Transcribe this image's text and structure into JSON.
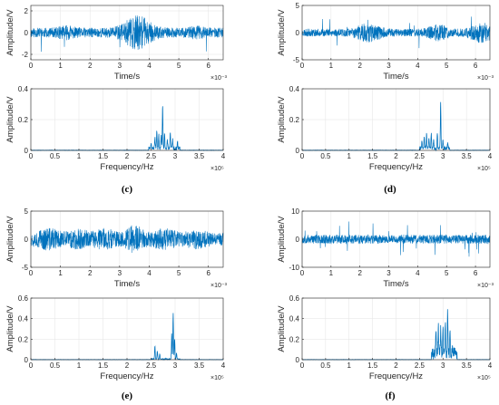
{
  "panel_labels": [
    "(c)",
    "(d)",
    "(e)",
    "(f)"
  ],
  "chart_data": [
    {
      "id": "c-time",
      "type": "line",
      "xlabel": "Time/s",
      "ylabel": "Amplitude/V",
      "x_multiplier": "×10⁻³",
      "xlim": [
        0,
        6.5
      ],
      "ylim": [
        -2.5,
        2.5
      ],
      "xticks": [
        0,
        1,
        2,
        3,
        4,
        5,
        6
      ],
      "yticks": [
        -2,
        0,
        2
      ],
      "signal": {
        "seed": 11,
        "base": 0.45,
        "bursts": [
          [
            3.6,
            1.15,
            0.5
          ],
          [
            1.2,
            0.25,
            0.3
          ],
          [
            5.6,
            0.2,
            0.3
          ]
        ],
        "spike_prob": 0.01,
        "spike_amp": 1.0
      }
    },
    {
      "id": "c-freq",
      "type": "line",
      "xlabel": "Frequency/Hz",
      "ylabel": "Amplitude/V",
      "x_multiplier": "×10⁵",
      "xlim": [
        0,
        4
      ],
      "ylim": [
        0,
        0.4
      ],
      "xticks": [
        0,
        0.5,
        1,
        1.5,
        2,
        2.5,
        3,
        3.5,
        4
      ],
      "yticks": [
        0,
        0.2,
        0.4
      ],
      "peaks": [
        [
          2.5,
          0.03
        ],
        [
          2.58,
          0.07
        ],
        [
          2.62,
          0.11
        ],
        [
          2.66,
          0.09
        ],
        [
          2.71,
          0.08
        ],
        [
          2.74,
          0.28
        ],
        [
          2.78,
          0.1
        ],
        [
          2.84,
          0.05
        ],
        [
          2.9,
          0.11
        ],
        [
          2.95,
          0.06
        ],
        [
          3.05,
          0.04
        ]
      ],
      "band": [
        2.45,
        3.1,
        0.025
      ]
    },
    {
      "id": "d-time",
      "type": "line",
      "xlabel": "Time/s",
      "ylabel": "Amplitude/V",
      "x_multiplier": "×10⁻³",
      "xlim": [
        0,
        6.5
      ],
      "ylim": [
        -5,
        5
      ],
      "xticks": [
        0,
        1,
        2,
        3,
        4,
        5,
        6
      ],
      "yticks": [
        -5,
        0,
        5
      ],
      "signal": {
        "seed": 23,
        "base": 0.7,
        "bursts": [
          [
            2.3,
            1.1,
            0.45
          ],
          [
            4.7,
            0.9,
            0.35
          ],
          [
            6.2,
            1.3,
            0.4
          ]
        ],
        "spike_prob": 0.01,
        "spike_amp": 1.5
      }
    },
    {
      "id": "d-freq",
      "type": "line",
      "xlabel": "Frequency/Hz",
      "ylabel": "Amplitude/V",
      "x_multiplier": "×10⁵",
      "xlim": [
        0,
        4
      ],
      "ylim": [
        0,
        0.4
      ],
      "xticks": [
        0,
        0.5,
        1,
        1.5,
        2,
        2.5,
        3,
        3.5,
        4
      ],
      "yticks": [
        0,
        0.2,
        0.4
      ],
      "peaks": [
        [
          2.55,
          0.05
        ],
        [
          2.6,
          0.08
        ],
        [
          2.65,
          0.1
        ],
        [
          2.7,
          0.07
        ],
        [
          2.75,
          0.1
        ],
        [
          2.8,
          0.06
        ],
        [
          2.88,
          0.09
        ],
        [
          2.95,
          0.31
        ],
        [
          3.0,
          0.05
        ],
        [
          3.1,
          0.03
        ]
      ],
      "band": [
        2.5,
        3.15,
        0.025
      ]
    },
    {
      "id": "e-time",
      "type": "line",
      "xlabel": "Time/s",
      "ylabel": "Amplitude/V",
      "x_multiplier": "×10⁻³",
      "xlim": [
        0,
        6.5
      ],
      "ylim": [
        -5,
        5
      ],
      "xticks": [
        0,
        1,
        2,
        3,
        4,
        5,
        6
      ],
      "yticks": [
        -5,
        0,
        5
      ],
      "signal": {
        "seed": 37,
        "base": 1.2,
        "bursts": [
          [
            0.6,
            0.9,
            0.4
          ],
          [
            1.6,
            0.7,
            0.35
          ],
          [
            2.5,
            0.8,
            0.35
          ],
          [
            3.5,
            1.4,
            0.3
          ],
          [
            4.5,
            0.9,
            0.35
          ],
          [
            5.6,
            0.6,
            0.4
          ]
        ],
        "spike_prob": 0.0,
        "spike_amp": 0
      }
    },
    {
      "id": "e-freq",
      "type": "line",
      "xlabel": "Frequency/Hz",
      "ylabel": "Amplitude/V",
      "x_multiplier": "×10⁵",
      "xlim": [
        0,
        4
      ],
      "ylim": [
        0,
        0.6
      ],
      "xticks": [
        0,
        0.5,
        1,
        1.5,
        2,
        2.5,
        3,
        3.5,
        4
      ],
      "yticks": [
        0,
        0.2,
        0.4,
        0.6
      ],
      "peaks": [
        [
          2.58,
          0.13
        ],
        [
          2.63,
          0.08
        ],
        [
          2.68,
          0.05
        ],
        [
          2.93,
          0.25
        ],
        [
          2.96,
          0.45
        ],
        [
          2.99,
          0.2
        ],
        [
          3.03,
          0.06
        ]
      ],
      "band": [
        2.5,
        3.1,
        0.01
      ]
    },
    {
      "id": "f-time",
      "type": "line",
      "xlabel": "Time/s",
      "ylabel": "Amplitude/V",
      "x_multiplier": "×10⁻³",
      "xlim": [
        0,
        6.5
      ],
      "ylim": [
        -10,
        10
      ],
      "xticks": [
        0,
        1,
        2,
        3,
        4,
        5,
        6
      ],
      "yticks": [
        -10,
        0,
        10
      ],
      "signal": {
        "seed": 53,
        "base": 1.6,
        "bursts": [],
        "spike_prob": 0.035,
        "spike_amp": 3.2
      }
    },
    {
      "id": "f-freq",
      "type": "line",
      "xlabel": "Frequency/Hz",
      "ylabel": "Amplitude/V",
      "x_multiplier": "×10⁵",
      "xlim": [
        0,
        4
      ],
      "ylim": [
        0,
        0.6
      ],
      "xticks": [
        0,
        0.5,
        1,
        1.5,
        2,
        2.5,
        3,
        3.5,
        4
      ],
      "yticks": [
        0,
        0.2,
        0.4,
        0.6
      ],
      "peaks": [
        [
          2.85,
          0.2
        ],
        [
          2.9,
          0.27
        ],
        [
          2.95,
          0.22
        ],
        [
          3.0,
          0.25
        ],
        [
          3.05,
          0.3
        ],
        [
          3.1,
          0.41
        ],
        [
          3.15,
          0.2
        ],
        [
          3.2,
          0.1
        ]
      ],
      "band": [
        2.75,
        3.3,
        0.12
      ]
    }
  ]
}
